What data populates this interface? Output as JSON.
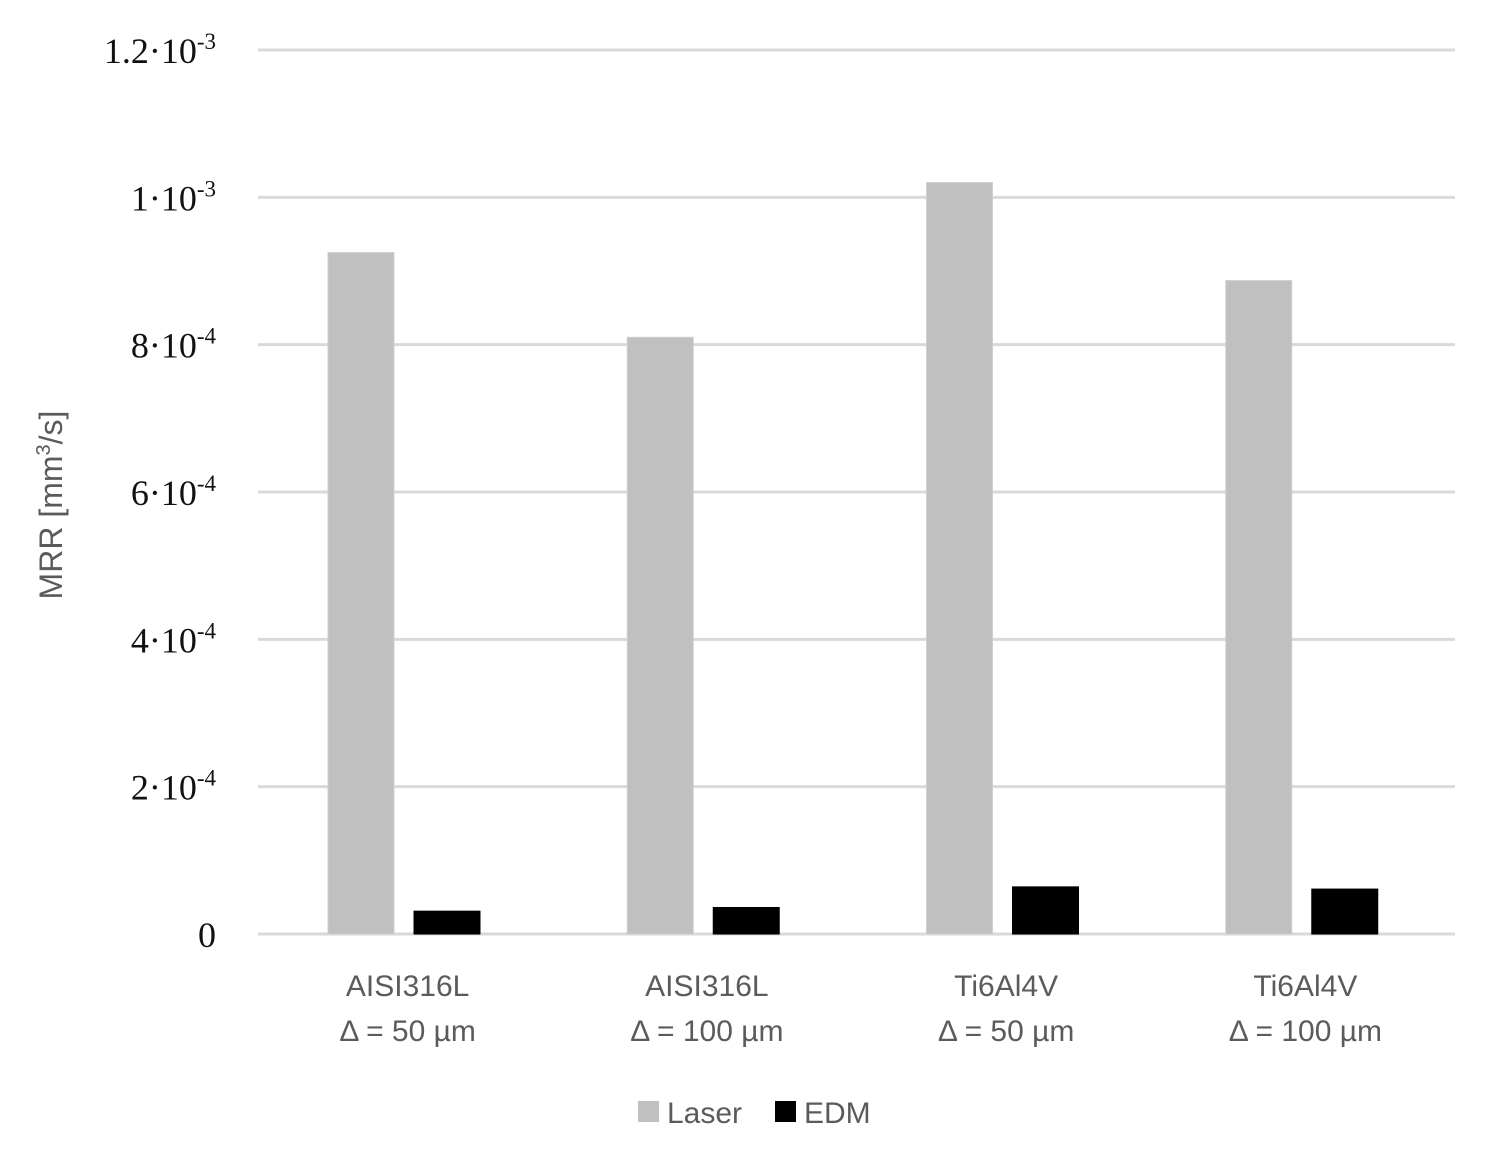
{
  "chart_data": {
    "type": "bar",
    "categories": [
      {
        "line1": "AISI316L",
        "line2": "Δ = 50 µm"
      },
      {
        "line1": "AISI316L",
        "line2": "Δ = 100 µm"
      },
      {
        "line1": "Ti6Al4V",
        "line2": "Δ = 50 µm"
      },
      {
        "line1": "Ti6Al4V",
        "line2": "Δ = 100 µm"
      }
    ],
    "series": [
      {
        "name": "Laser",
        "color": "#c0c0c0",
        "values": [
          0.000925,
          0.00081,
          0.00102,
          0.000887
        ]
      },
      {
        "name": "EDM",
        "color": "#000000",
        "values": [
          3.1e-05,
          3.6e-05,
          6.4e-05,
          6.1e-05
        ]
      }
    ],
    "ylabel": {
      "main": "MRR [mm",
      "sup": "3",
      "tail": "/s]"
    },
    "ylim": [
      0,
      0.0012
    ],
    "yticks": [
      {
        "value": 0,
        "base": "0",
        "exp": ""
      },
      {
        "value": 0.0002,
        "base": "2·10",
        "exp": "-4"
      },
      {
        "value": 0.0004,
        "base": "4·10",
        "exp": "-4"
      },
      {
        "value": 0.0006,
        "base": "6·10",
        "exp": "-4"
      },
      {
        "value": 0.0008,
        "base": "8·10",
        "exp": "-4"
      },
      {
        "value": 0.001,
        "base": "1·10",
        "exp": "-3"
      },
      {
        "value": 0.0012,
        "base": "1.2·10",
        "exp": "-3"
      }
    ],
    "grid": true,
    "gridColor": "#d9d9d9",
    "legend_position": "bottom-center"
  }
}
